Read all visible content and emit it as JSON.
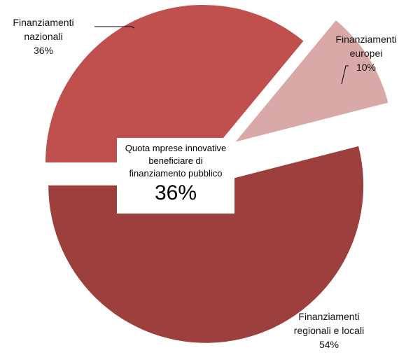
{
  "chart_data": {
    "type": "pie",
    "categories": [
      "Finanziamenti nazionali",
      "Finanziamenti europei",
      "Finanziamenti regionali e locali"
    ],
    "values": [
      36,
      10,
      54
    ],
    "value_labels": [
      "36%",
      "10%",
      "54%"
    ],
    "colors": [
      "#c0504d",
      "#d9a9a8",
      "#9d403d"
    ],
    "annotation": "Quota mprese innovative beneficiare di finanziamento pubblico",
    "annotation_value": "36%"
  }
}
